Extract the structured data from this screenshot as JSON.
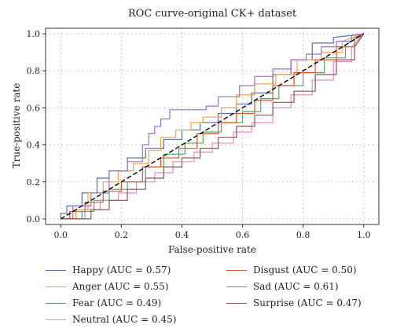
{
  "chart_data": {
    "type": "line",
    "title": "ROC curve-original CK+ dataset",
    "xlabel": "False-positive rate",
    "ylabel": "True-positive rate",
    "xlim": [
      -0.05,
      1.05
    ],
    "ylim": [
      -0.03,
      1.03
    ],
    "xticks": [
      "0.0",
      "0.2",
      "0.4",
      "0.6",
      "0.8",
      "1.0"
    ],
    "yticks": [
      "0.0",
      "0.2",
      "0.4",
      "0.6",
      "0.8",
      "1.0"
    ],
    "grid": true,
    "legend_placement": "bottom",
    "reference_line": {
      "x": [
        0,
        1
      ],
      "y": [
        0,
        1
      ],
      "style": "dashed"
    },
    "series": [
      {
        "name": "Happy",
        "label": "Happy (AUC = 0.57)",
        "color": "#4c72b0",
        "x": [
          0,
          0,
          0.02,
          0.02,
          0.07,
          0.07,
          0.12,
          0.12,
          0.16,
          0.16,
          0.22,
          0.22,
          0.28,
          0.28,
          0.34,
          0.34,
          0.4,
          0.4,
          0.46,
          0.46,
          0.52,
          0.52,
          0.58,
          0.58,
          0.63,
          0.63,
          0.7,
          0.7,
          0.76,
          0.76,
          0.83,
          0.83,
          0.9,
          0.9,
          1
        ],
        "y": [
          0,
          0.03,
          0.03,
          0.07,
          0.07,
          0.14,
          0.14,
          0.22,
          0.22,
          0.26,
          0.26,
          0.33,
          0.33,
          0.38,
          0.38,
          0.43,
          0.43,
          0.48,
          0.48,
          0.52,
          0.52,
          0.57,
          0.57,
          0.62,
          0.62,
          0.68,
          0.68,
          0.78,
          0.78,
          0.86,
          0.86,
          0.95,
          0.95,
          0.98,
          1
        ]
      },
      {
        "name": "Anger",
        "label": "Anger (AUC = 0.55)",
        "color": "#f5a142",
        "x": [
          0,
          0.05,
          0.05,
          0.09,
          0.09,
          0.14,
          0.14,
          0.19,
          0.19,
          0.24,
          0.24,
          0.29,
          0.29,
          0.33,
          0.33,
          0.38,
          0.38,
          0.43,
          0.43,
          0.47,
          0.47,
          0.53,
          0.53,
          0.58,
          0.58,
          0.64,
          0.64,
          0.71,
          0.71,
          0.78,
          0.78,
          0.86,
          0.86,
          0.93,
          0.93,
          1
        ],
        "y": [
          0,
          0,
          0.05,
          0.05,
          0.14,
          0.14,
          0.2,
          0.2,
          0.26,
          0.26,
          0.3,
          0.3,
          0.37,
          0.37,
          0.44,
          0.44,
          0.48,
          0.48,
          0.52,
          0.52,
          0.55,
          0.55,
          0.6,
          0.6,
          0.67,
          0.67,
          0.73,
          0.73,
          0.78,
          0.78,
          0.86,
          0.86,
          0.9,
          0.9,
          0.96,
          1
        ]
      },
      {
        "name": "Fear",
        "label": "Fear (AUC = 0.49)",
        "color": "#55a868",
        "x": [
          0,
          0.07,
          0.07,
          0.11,
          0.11,
          0.16,
          0.16,
          0.22,
          0.22,
          0.28,
          0.28,
          0.34,
          0.34,
          0.41,
          0.41,
          0.47,
          0.47,
          0.53,
          0.53,
          0.6,
          0.6,
          0.66,
          0.66,
          0.72,
          0.72,
          0.8,
          0.8,
          0.87,
          0.87,
          0.94,
          0.94,
          1
        ],
        "y": [
          0,
          0,
          0.04,
          0.04,
          0.1,
          0.1,
          0.16,
          0.16,
          0.2,
          0.2,
          0.28,
          0.28,
          0.35,
          0.35,
          0.41,
          0.41,
          0.47,
          0.47,
          0.52,
          0.52,
          0.58,
          0.58,
          0.65,
          0.65,
          0.72,
          0.72,
          0.79,
          0.79,
          0.87,
          0.87,
          0.94,
          1
        ]
      },
      {
        "name": "Neutral",
        "label": "Neutral (AUC = 0.45)",
        "color": "#e889c4",
        "x": [
          0,
          0.08,
          0.08,
          0.13,
          0.13,
          0.19,
          0.19,
          0.25,
          0.25,
          0.31,
          0.31,
          0.37,
          0.37,
          0.44,
          0.44,
          0.5,
          0.5,
          0.57,
          0.57,
          0.63,
          0.63,
          0.7,
          0.7,
          0.76,
          0.76,
          0.83,
          0.83,
          0.9,
          0.9,
          0.96,
          0.96,
          1
        ],
        "y": [
          0,
          0,
          0.05,
          0.05,
          0.1,
          0.1,
          0.14,
          0.14,
          0.2,
          0.2,
          0.25,
          0.25,
          0.31,
          0.31,
          0.36,
          0.36,
          0.41,
          0.41,
          0.47,
          0.47,
          0.52,
          0.52,
          0.6,
          0.6,
          0.67,
          0.67,
          0.75,
          0.75,
          0.85,
          0.85,
          0.93,
          1
        ]
      },
      {
        "name": "Disgust",
        "label": "Disgust (AUC = 0.50)",
        "color": "#e0572b",
        "x": [
          0,
          0.03,
          0.03,
          0.08,
          0.08,
          0.14,
          0.14,
          0.2,
          0.2,
          0.27,
          0.27,
          0.33,
          0.33,
          0.39,
          0.39,
          0.45,
          0.45,
          0.52,
          0.52,
          0.58,
          0.58,
          0.64,
          0.64,
          0.7,
          0.7,
          0.77,
          0.77,
          0.84,
          0.84,
          0.91,
          0.91,
          0.97,
          0.97,
          1
        ],
        "y": [
          0,
          0,
          0.04,
          0.04,
          0.09,
          0.09,
          0.15,
          0.15,
          0.2,
          0.2,
          0.28,
          0.28,
          0.33,
          0.33,
          0.38,
          0.38,
          0.46,
          0.46,
          0.52,
          0.52,
          0.57,
          0.57,
          0.64,
          0.64,
          0.72,
          0.72,
          0.79,
          0.79,
          0.86,
          0.86,
          0.93,
          0.93,
          0.98,
          1
        ]
      },
      {
        "name": "Sad",
        "label": "Sad (AUC = 0.61)",
        "color": "#9b6fd4",
        "x": [
          0,
          0.04,
          0.04,
          0.1,
          0.1,
          0.16,
          0.16,
          0.22,
          0.22,
          0.27,
          0.27,
          0.29,
          0.29,
          0.31,
          0.31,
          0.33,
          0.33,
          0.36,
          0.36,
          0.48,
          0.48,
          0.52,
          0.52,
          0.59,
          0.59,
          0.64,
          0.64,
          0.7,
          0.7,
          0.76,
          0.76,
          0.81,
          0.81,
          0.86,
          0.86,
          0.91,
          0.91,
          0.96,
          0.96,
          1
        ],
        "y": [
          0,
          0,
          0.07,
          0.07,
          0.14,
          0.14,
          0.26,
          0.26,
          0.31,
          0.31,
          0.4,
          0.4,
          0.46,
          0.46,
          0.5,
          0.5,
          0.54,
          0.54,
          0.59,
          0.59,
          0.61,
          0.61,
          0.66,
          0.66,
          0.72,
          0.72,
          0.77,
          0.77,
          0.81,
          0.81,
          0.86,
          0.86,
          0.89,
          0.89,
          0.93,
          0.93,
          0.96,
          0.96,
          0.99,
          1
        ]
      },
      {
        "name": "Surprise",
        "label": "Surprise (AUC = 0.47)",
        "color": "#8c564b",
        "x": [
          0,
          0.1,
          0.1,
          0.16,
          0.16,
          0.22,
          0.22,
          0.28,
          0.28,
          0.34,
          0.34,
          0.4,
          0.4,
          0.46,
          0.46,
          0.52,
          0.52,
          0.58,
          0.58,
          0.64,
          0.64,
          0.7,
          0.7,
          0.77,
          0.77,
          0.84,
          0.84,
          0.91,
          0.91,
          0.97,
          0.97,
          1
        ],
        "y": [
          0,
          0,
          0.05,
          0.05,
          0.1,
          0.1,
          0.16,
          0.16,
          0.22,
          0.22,
          0.28,
          0.28,
          0.33,
          0.33,
          0.38,
          0.38,
          0.44,
          0.44,
          0.5,
          0.5,
          0.56,
          0.56,
          0.63,
          0.63,
          0.69,
          0.69,
          0.78,
          0.78,
          0.86,
          0.86,
          0.93,
          1
        ]
      }
    ]
  }
}
